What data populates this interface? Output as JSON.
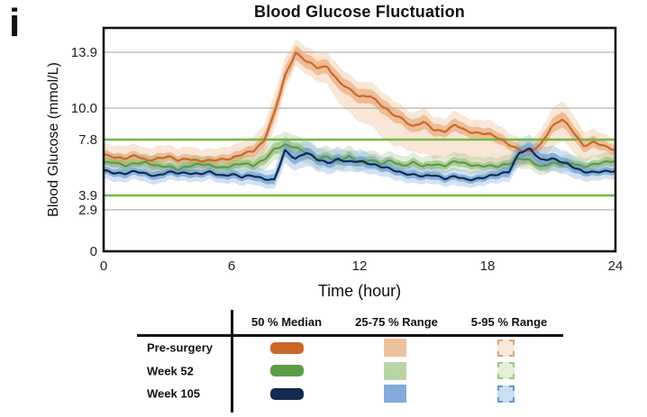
{
  "figure_label": "i",
  "chart_data": {
    "type": "line",
    "title": "Blood Glucose Fluctuation",
    "xlabel": "Time (hour)",
    "ylabel": "Blood Glucose (mmol/L)",
    "xlim": [
      0,
      24
    ],
    "ylim": [
      0,
      15.6
    ],
    "grid": "horizontal-only",
    "legend_position": "bottom-table",
    "x_ticks": [
      {
        "label": "0",
        "value": 0
      },
      {
        "label": "6",
        "value": 6
      },
      {
        "label": "12",
        "value": 12
      },
      {
        "label": "18",
        "value": 18
      },
      {
        "label": "24",
        "value": 24
      }
    ],
    "y_ticks": [
      {
        "label": "13.9",
        "value": 13.9
      },
      {
        "label": "10.0",
        "value": 10.0
      },
      {
        "label": "7.8",
        "value": 7.8
      },
      {
        "label": "3.9",
        "value": 3.9
      },
      {
        "label": "2.9",
        "value": 2.9
      },
      {
        "label": "0",
        "value": 0
      }
    ],
    "reference_lines": [
      {
        "value": 13.9,
        "kind": "grid"
      },
      {
        "value": 10.0,
        "kind": "grid"
      },
      {
        "value": 2.9,
        "kind": "grid"
      },
      {
        "value": 7.8,
        "kind": "target"
      },
      {
        "value": 3.9,
        "kind": "target"
      }
    ],
    "colors": {
      "grid": "#bcbcbc",
      "target": "#72b843",
      "frame": "#151515"
    },
    "t_start": 0,
    "t_step": 0.5,
    "series": [
      {
        "name": "Pre-surgery",
        "line_color": "#c9682a",
        "band_color": "#e59a5e",
        "inner_band_opacity": 0.55,
        "outer_band_opacity": 0.25,
        "median": [
          6.7,
          6.6,
          6.5,
          6.65,
          6.35,
          6.5,
          6.6,
          6.35,
          6.5,
          6.3,
          6.3,
          6.45,
          6.5,
          6.75,
          7.0,
          7.7,
          9.6,
          12.2,
          13.9,
          13.3,
          12.8,
          12.9,
          11.9,
          11.3,
          10.8,
          10.9,
          10.2,
          9.6,
          9.3,
          8.7,
          9.0,
          8.5,
          8.4,
          8.8,
          8.4,
          8.3,
          8.2,
          7.9,
          7.5,
          7.1,
          6.9,
          7.5,
          8.7,
          9.2,
          8.4,
          7.4,
          7.6,
          7.3,
          7.1
        ],
        "iqr_hw": [
          0.3,
          0.3,
          0.35,
          0.3,
          0.3,
          0.35,
          0.3,
          0.3,
          0.35,
          0.3,
          0.3,
          0.3,
          0.35,
          0.35,
          0.4,
          0.5,
          0.6,
          0.6,
          0.5,
          0.5,
          0.5,
          0.5,
          0.55,
          0.5,
          0.5,
          0.5,
          0.5,
          0.5,
          0.45,
          0.45,
          0.5,
          0.45,
          0.4,
          0.45,
          0.4,
          0.4,
          0.4,
          0.4,
          0.35,
          0.35,
          0.35,
          0.5,
          0.5,
          0.55,
          0.5,
          0.45,
          0.4,
          0.35,
          0.35
        ],
        "outer_lo": [
          0.7,
          0.7,
          0.8,
          0.7,
          0.7,
          0.8,
          0.7,
          0.7,
          0.8,
          0.7,
          0.7,
          0.7,
          0.8,
          0.8,
          0.9,
          1.0,
          1.2,
          1.0,
          0.9,
          0.9,
          1.0,
          1.2,
          1.5,
          1.6,
          1.8,
          2.0,
          2.2,
          2.2,
          2.0,
          1.8,
          2.2,
          2.0,
          1.8,
          2.2,
          2.0,
          1.9,
          2.0,
          1.8,
          1.5,
          1.2,
          1.0,
          1.2,
          1.5,
          1.5,
          1.4,
          1.2,
          1.0,
          0.9,
          0.9
        ],
        "outer_hi": [
          0.8,
          0.8,
          0.9,
          0.8,
          0.8,
          0.9,
          0.8,
          0.8,
          0.9,
          0.8,
          0.8,
          0.8,
          0.9,
          0.9,
          1.0,
          1.1,
          1.3,
          1.2,
          0.9,
          1.0,
          1.0,
          1.0,
          1.1,
          1.0,
          1.0,
          1.0,
          1.0,
          1.0,
          0.9,
          0.9,
          1.0,
          0.9,
          0.9,
          1.0,
          0.9,
          0.9,
          1.0,
          0.9,
          0.8,
          0.8,
          0.8,
          1.0,
          1.2,
          1.3,
          1.2,
          1.0,
          0.9,
          0.8,
          0.8
        ]
      },
      {
        "name": "Week 52",
        "line_color": "#5e9b46",
        "band_color": "#86b465",
        "inner_band_opacity": 0.55,
        "outer_band_opacity": 0.25,
        "median": [
          6.15,
          6.25,
          6.0,
          6.1,
          6.2,
          6.0,
          5.9,
          5.7,
          6.0,
          6.1,
          5.95,
          5.85,
          6.0,
          6.1,
          6.0,
          6.4,
          7.1,
          7.4,
          7.3,
          6.9,
          6.4,
          6.65,
          6.3,
          6.6,
          6.2,
          6.45,
          6.1,
          6.3,
          6.0,
          6.2,
          5.9,
          6.1,
          6.0,
          6.25,
          6.1,
          6.0,
          5.95,
          5.9,
          6.15,
          6.5,
          6.3,
          5.9,
          6.2,
          6.05,
          6.15,
          5.95,
          6.05,
          6.2,
          6.35
        ],
        "iqr_hw": [
          0.25,
          0.25,
          0.3,
          0.25,
          0.25,
          0.3,
          0.25,
          0.25,
          0.3,
          0.25,
          0.25,
          0.25,
          0.3,
          0.25,
          0.3,
          0.35,
          0.4,
          0.4,
          0.35,
          0.35,
          0.3,
          0.3,
          0.3,
          0.3,
          0.3,
          0.3,
          0.25,
          0.3,
          0.25,
          0.3,
          0.25,
          0.3,
          0.25,
          0.3,
          0.3,
          0.25,
          0.25,
          0.25,
          0.3,
          0.35,
          0.3,
          0.3,
          0.3,
          0.25,
          0.3,
          0.25,
          0.25,
          0.3,
          0.3
        ],
        "outer_lo": [
          0.55,
          0.55,
          0.6,
          0.55,
          0.55,
          0.6,
          0.55,
          0.55,
          0.6,
          0.55,
          0.55,
          0.55,
          0.6,
          0.6,
          0.6,
          0.7,
          0.8,
          0.8,
          0.8,
          0.7,
          0.7,
          0.7,
          0.65,
          0.7,
          0.6,
          0.65,
          0.6,
          0.6,
          0.6,
          0.6,
          0.55,
          0.6,
          0.55,
          0.6,
          0.6,
          0.55,
          0.55,
          0.55,
          0.6,
          0.7,
          0.65,
          0.6,
          0.6,
          0.55,
          0.6,
          0.55,
          0.55,
          0.6,
          0.6
        ],
        "outer_hi": [
          0.6,
          0.6,
          0.65,
          0.6,
          0.6,
          0.65,
          0.6,
          0.6,
          0.65,
          0.6,
          0.6,
          0.6,
          0.65,
          0.65,
          0.65,
          0.8,
          0.9,
          0.9,
          0.85,
          0.8,
          0.75,
          0.75,
          0.7,
          0.75,
          0.65,
          0.7,
          0.65,
          0.65,
          0.65,
          0.65,
          0.6,
          0.65,
          0.6,
          0.65,
          0.65,
          0.6,
          0.6,
          0.6,
          0.65,
          0.75,
          0.7,
          0.65,
          0.65,
          0.6,
          0.65,
          0.6,
          0.6,
          0.65,
          0.65
        ]
      },
      {
        "name": "Week 105",
        "line_color": "#142a50",
        "band_color": "#6b9fd4",
        "inner_band_opacity": 0.7,
        "outer_band_opacity": 0.3,
        "median": [
          5.6,
          5.5,
          5.45,
          5.55,
          5.4,
          5.3,
          5.5,
          5.45,
          5.5,
          5.4,
          5.5,
          5.3,
          5.4,
          5.15,
          5.3,
          5.1,
          4.95,
          7.0,
          6.5,
          6.9,
          6.4,
          6.2,
          6.45,
          6.2,
          6.3,
          6.15,
          5.9,
          5.7,
          5.5,
          5.35,
          5.2,
          5.35,
          5.1,
          5.2,
          5.0,
          5.1,
          5.2,
          5.35,
          5.6,
          6.9,
          7.1,
          6.4,
          6.5,
          6.2,
          5.9,
          5.6,
          5.5,
          5.55,
          5.65
        ],
        "iqr_hw": [
          0.25,
          0.25,
          0.3,
          0.25,
          0.25,
          0.3,
          0.25,
          0.25,
          0.3,
          0.25,
          0.25,
          0.25,
          0.3,
          0.25,
          0.3,
          0.3,
          0.35,
          0.45,
          0.4,
          0.4,
          0.35,
          0.35,
          0.35,
          0.3,
          0.35,
          0.3,
          0.3,
          0.3,
          0.25,
          0.3,
          0.25,
          0.3,
          0.25,
          0.25,
          0.25,
          0.25,
          0.25,
          0.3,
          0.35,
          0.45,
          0.45,
          0.4,
          0.4,
          0.35,
          0.35,
          0.3,
          0.25,
          0.25,
          0.25
        ],
        "outer_lo": [
          0.55,
          0.6,
          0.6,
          0.55,
          0.6,
          0.6,
          0.55,
          0.55,
          0.6,
          0.55,
          0.55,
          0.55,
          0.6,
          0.6,
          0.6,
          0.6,
          0.65,
          0.9,
          0.85,
          0.9,
          0.8,
          0.8,
          0.8,
          0.7,
          0.75,
          0.7,
          0.65,
          0.65,
          0.6,
          0.6,
          0.55,
          0.6,
          0.55,
          0.6,
          0.55,
          0.55,
          0.55,
          0.6,
          0.7,
          0.9,
          0.9,
          0.85,
          0.85,
          0.8,
          0.75,
          0.65,
          0.6,
          0.55,
          0.55
        ],
        "outer_hi": [
          0.6,
          0.6,
          0.65,
          0.6,
          0.6,
          0.65,
          0.6,
          0.6,
          0.65,
          0.6,
          0.6,
          0.6,
          0.65,
          0.6,
          0.65,
          0.65,
          0.7,
          1.0,
          0.9,
          0.95,
          0.85,
          0.85,
          0.85,
          0.75,
          0.8,
          0.75,
          0.7,
          0.7,
          0.65,
          0.65,
          0.6,
          0.65,
          0.6,
          0.6,
          0.6,
          0.6,
          0.6,
          0.65,
          0.75,
          1.0,
          0.95,
          0.9,
          0.9,
          0.85,
          0.8,
          0.7,
          0.65,
          0.6,
          0.6
        ]
      }
    ]
  },
  "legend": {
    "columns": [
      "50 % Median",
      "25-75 % Range",
      "5-95 % Range"
    ],
    "rows": [
      {
        "label": "Pre-surgery",
        "median_color": "#c9682a",
        "iqr_color": "#edc19b",
        "outer_fill": "#fae9db",
        "outer_border": "#e2a474"
      },
      {
        "label": "Week 52",
        "median_color": "#5e9b46",
        "iqr_color": "#b9d5a5",
        "outer_fill": "#e4efd9",
        "outer_border": "#9fc781"
      },
      {
        "label": "Week 105",
        "median_color": "#142a50",
        "iqr_color": "#82abda",
        "outer_fill": "#c9dff2",
        "outer_border": "#5c9bd3"
      }
    ]
  }
}
